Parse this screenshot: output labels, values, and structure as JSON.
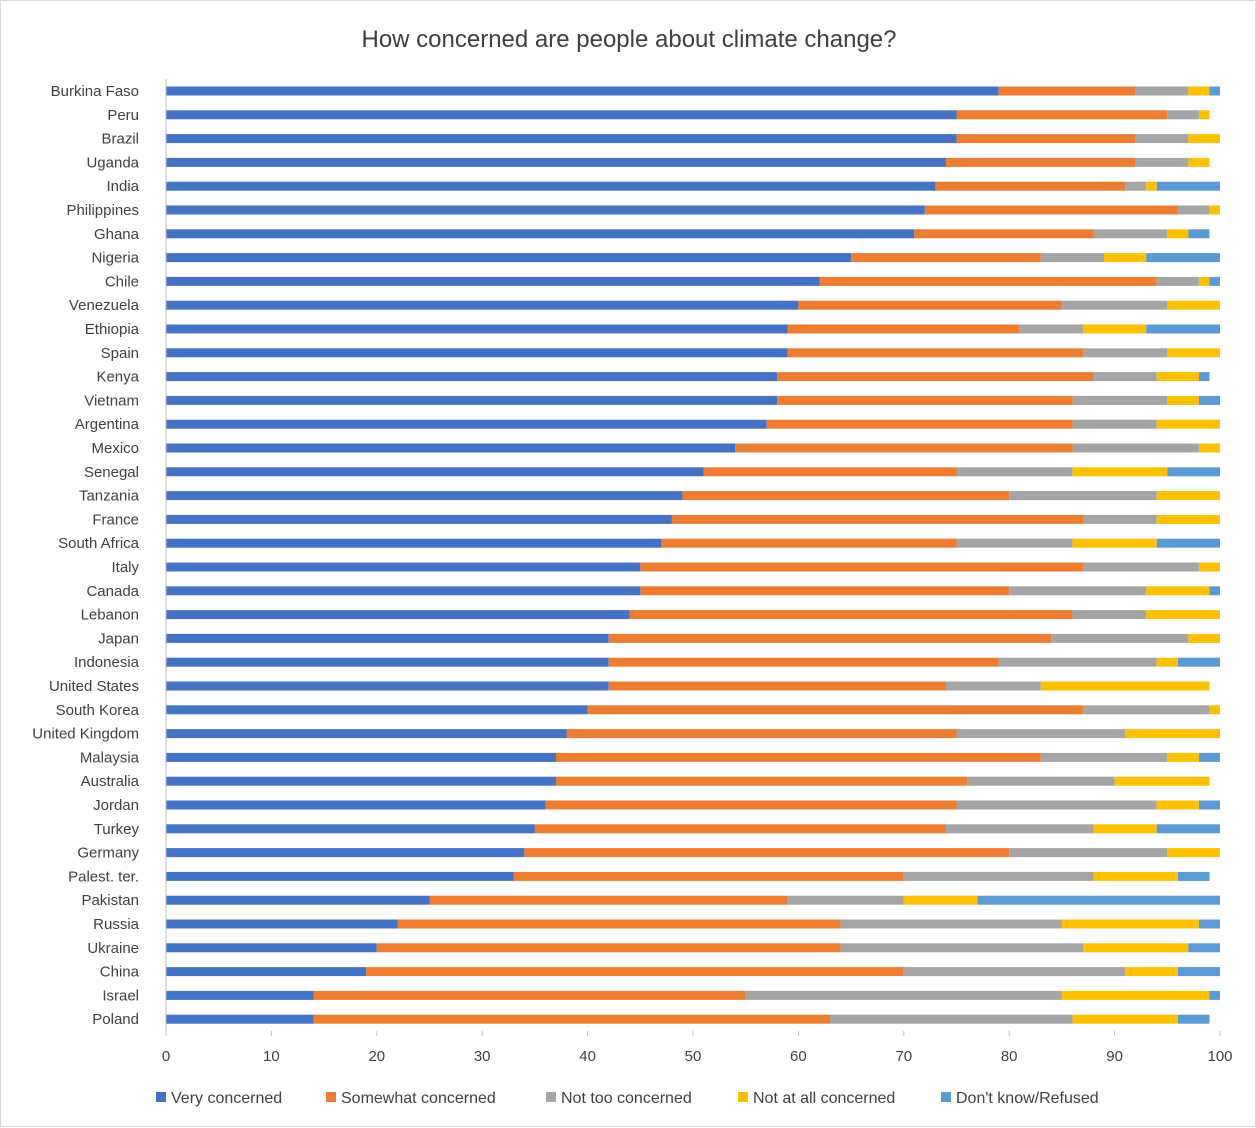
{
  "chart_data": {
    "type": "bar",
    "orientation": "horizontal",
    "stacked": true,
    "title": "How concerned are people about climate change?",
    "xlim": [
      0,
      100
    ],
    "xticks": [
      0,
      10,
      20,
      30,
      40,
      50,
      60,
      70,
      80,
      90,
      100
    ],
    "grid": false,
    "legend_position": "bottom",
    "categories": [
      "Burkina Faso",
      "Peru",
      "Brazil",
      "Uganda",
      "India",
      "Philippines",
      "Ghana",
      "Nigeria",
      "Chile",
      "Venezuela",
      "Ethiopia",
      "Spain",
      "Kenya",
      "Vietnam",
      "Argentina",
      "Mexico",
      "Senegal",
      "Tanzania",
      "France",
      "South Africa",
      "Italy",
      "Canada",
      "Lebanon",
      "Japan",
      "Indonesia",
      "United States",
      "South Korea",
      "United Kingdom",
      "Malaysia",
      "Australia",
      "Jordan",
      "Turkey",
      "Germany",
      "Palest. ter.",
      "Pakistan",
      "Russia",
      "Ukraine",
      "China",
      "Israel",
      "Poland"
    ],
    "series": [
      {
        "name": "Very concerned",
        "color": "#4472C4",
        "values": [
          79,
          75,
          75,
          74,
          73,
          72,
          71,
          65,
          62,
          60,
          59,
          59,
          58,
          58,
          57,
          54,
          51,
          49,
          48,
          47,
          45,
          45,
          44,
          42,
          42,
          42,
          40,
          38,
          37,
          37,
          36,
          35,
          34,
          33,
          25,
          22,
          20,
          19,
          14,
          14
        ]
      },
      {
        "name": "Somewhat  concerned",
        "color": "#ED7D31",
        "values": [
          13,
          20,
          17,
          18,
          18,
          24,
          17,
          18,
          32,
          25,
          22,
          28,
          30,
          28,
          29,
          32,
          24,
          31,
          39,
          28,
          42,
          35,
          42,
          42,
          37,
          32,
          47,
          37,
          46,
          39,
          39,
          39,
          46,
          37,
          34,
          42,
          44,
          51,
          41,
          49
        ]
      },
      {
        "name": "Not too concerned",
        "color": "#A5A5A5",
        "values": [
          5,
          3,
          5,
          5,
          2,
          3,
          7,
          6,
          4,
          10,
          6,
          8,
          6,
          9,
          8,
          12,
          11,
          14,
          7,
          11,
          11,
          13,
          7,
          13,
          15,
          9,
          12,
          16,
          12,
          14,
          19,
          14,
          15,
          18,
          11,
          21,
          23,
          21,
          30,
          23
        ]
      },
      {
        "name": "Not at all concerned",
        "color": "#FFC000",
        "values": [
          2,
          1,
          3,
          2,
          1,
          1,
          2,
          4,
          1,
          5,
          6,
          5,
          4,
          3,
          6,
          2,
          9,
          6,
          6,
          8,
          2,
          6,
          7,
          3,
          2,
          16,
          1,
          9,
          3,
          9,
          4,
          6,
          5,
          8,
          7,
          13,
          10,
          5,
          14,
          10
        ]
      },
      {
        "name": "Don't know/Refused",
        "color": "#5B9BD5",
        "values": [
          1,
          0,
          0,
          0,
          6,
          0,
          2,
          7,
          1,
          0,
          7,
          0,
          1,
          2,
          0,
          0,
          5,
          0,
          0,
          6,
          0,
          1,
          0,
          0,
          4,
          0,
          0,
          0,
          2,
          0,
          2,
          6,
          0,
          3,
          23,
          2,
          3,
          4,
          1,
          3
        ]
      }
    ]
  }
}
